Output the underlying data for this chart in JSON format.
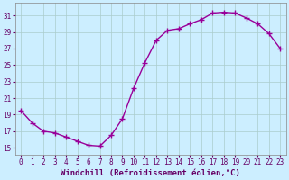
{
  "x": [
    0,
    1,
    2,
    3,
    4,
    5,
    6,
    7,
    8,
    9,
    10,
    11,
    12,
    13,
    14,
    15,
    16,
    17,
    18,
    19,
    20,
    21,
    22,
    23
  ],
  "y": [
    19.5,
    18.0,
    17.0,
    16.8,
    16.3,
    15.8,
    15.3,
    15.2,
    16.5,
    18.5,
    22.2,
    25.3,
    28.0,
    29.2,
    29.4,
    30.0,
    30.5,
    31.3,
    31.4,
    31.3,
    30.7,
    30.0,
    28.8,
    27.0
  ],
  "line_color": "#990099",
  "marker": "+",
  "marker_size": 4,
  "linewidth": 1.0,
  "bg_color": "#cceeff",
  "grid_color": "#aacccc",
  "xlabel": "Windchill (Refroidissement éolien,°C)",
  "xlabel_fontsize": 6.5,
  "yticks": [
    15,
    17,
    19,
    21,
    23,
    25,
    27,
    29,
    31
  ],
  "xticks": [
    0,
    1,
    2,
    3,
    4,
    5,
    6,
    7,
    8,
    9,
    10,
    11,
    12,
    13,
    14,
    15,
    16,
    17,
    18,
    19,
    20,
    21,
    22,
    23
  ],
  "ylim": [
    14.2,
    32.5
  ],
  "xlim": [
    -0.5,
    23.5
  ],
  "tick_fontsize": 5.5,
  "figsize": [
    3.2,
    2.0
  ],
  "dpi": 100
}
